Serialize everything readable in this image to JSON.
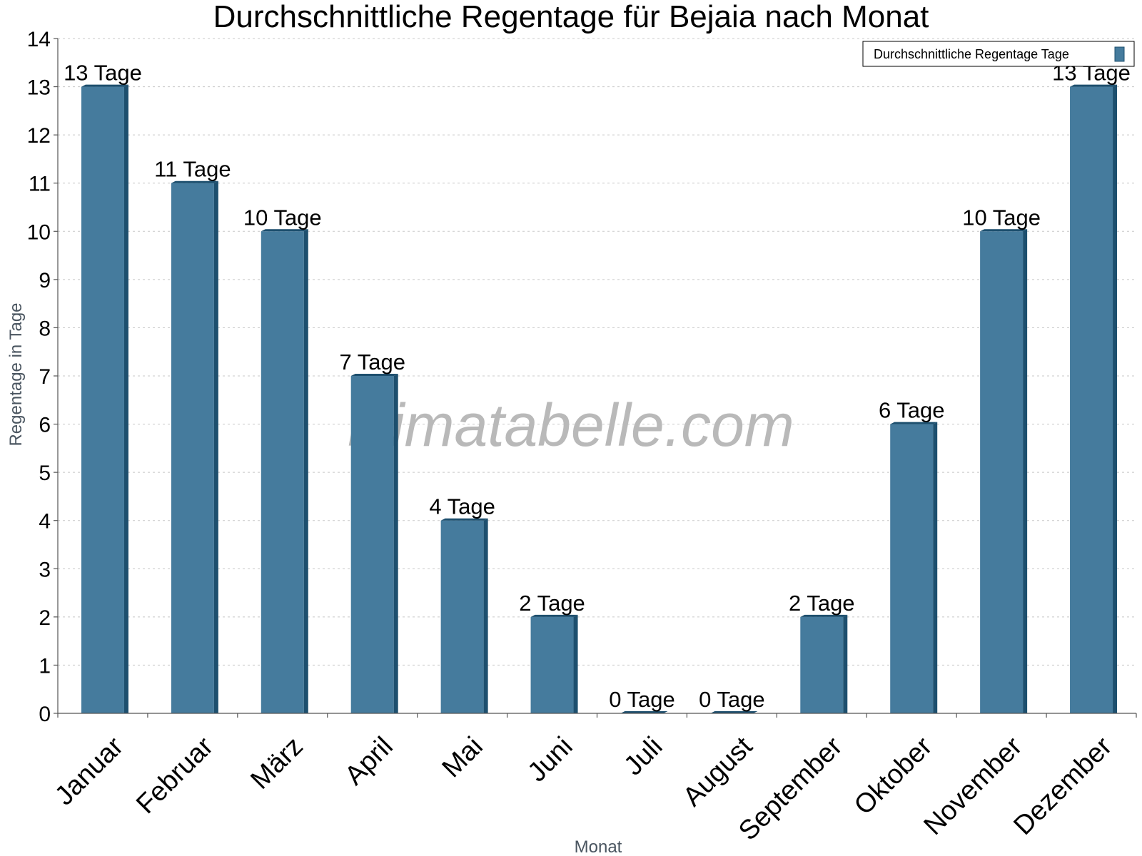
{
  "chart_data": {
    "type": "bar",
    "title": "Durchschnittliche Regentage für Bejaia nach Monat",
    "xlabel": "Monat",
    "ylabel": "Regentage in Tage",
    "categories": [
      "Januar",
      "Februar",
      "März",
      "April",
      "Mai",
      "Juni",
      "Juli",
      "August",
      "September",
      "Oktober",
      "November",
      "Dezember"
    ],
    "series": [
      {
        "name": "Durchschnittliche Regentage Tage",
        "values": [
          13,
          11,
          10,
          7,
          4,
          2,
          0,
          0,
          2,
          6,
          10,
          13
        ],
        "data_labels": [
          "13 Tage",
          "11 Tage",
          "10 Tage",
          "7 Tage",
          "4 Tage",
          "2 Tage",
          "0 Tage",
          "0 Tage",
          "2 Tage",
          "6 Tage",
          "10 Tage",
          "13 Tage"
        ],
        "color": "#457b9d",
        "side_color": "#1d4f6e"
      }
    ],
    "ylim": [
      0,
      14
    ],
    "yticks": [
      0,
      1,
      2,
      3,
      4,
      5,
      6,
      7,
      8,
      9,
      10,
      11,
      12,
      13,
      14
    ],
    "grid": true,
    "legend_position": "top-right"
  },
  "watermark": "klimatabelle.com"
}
